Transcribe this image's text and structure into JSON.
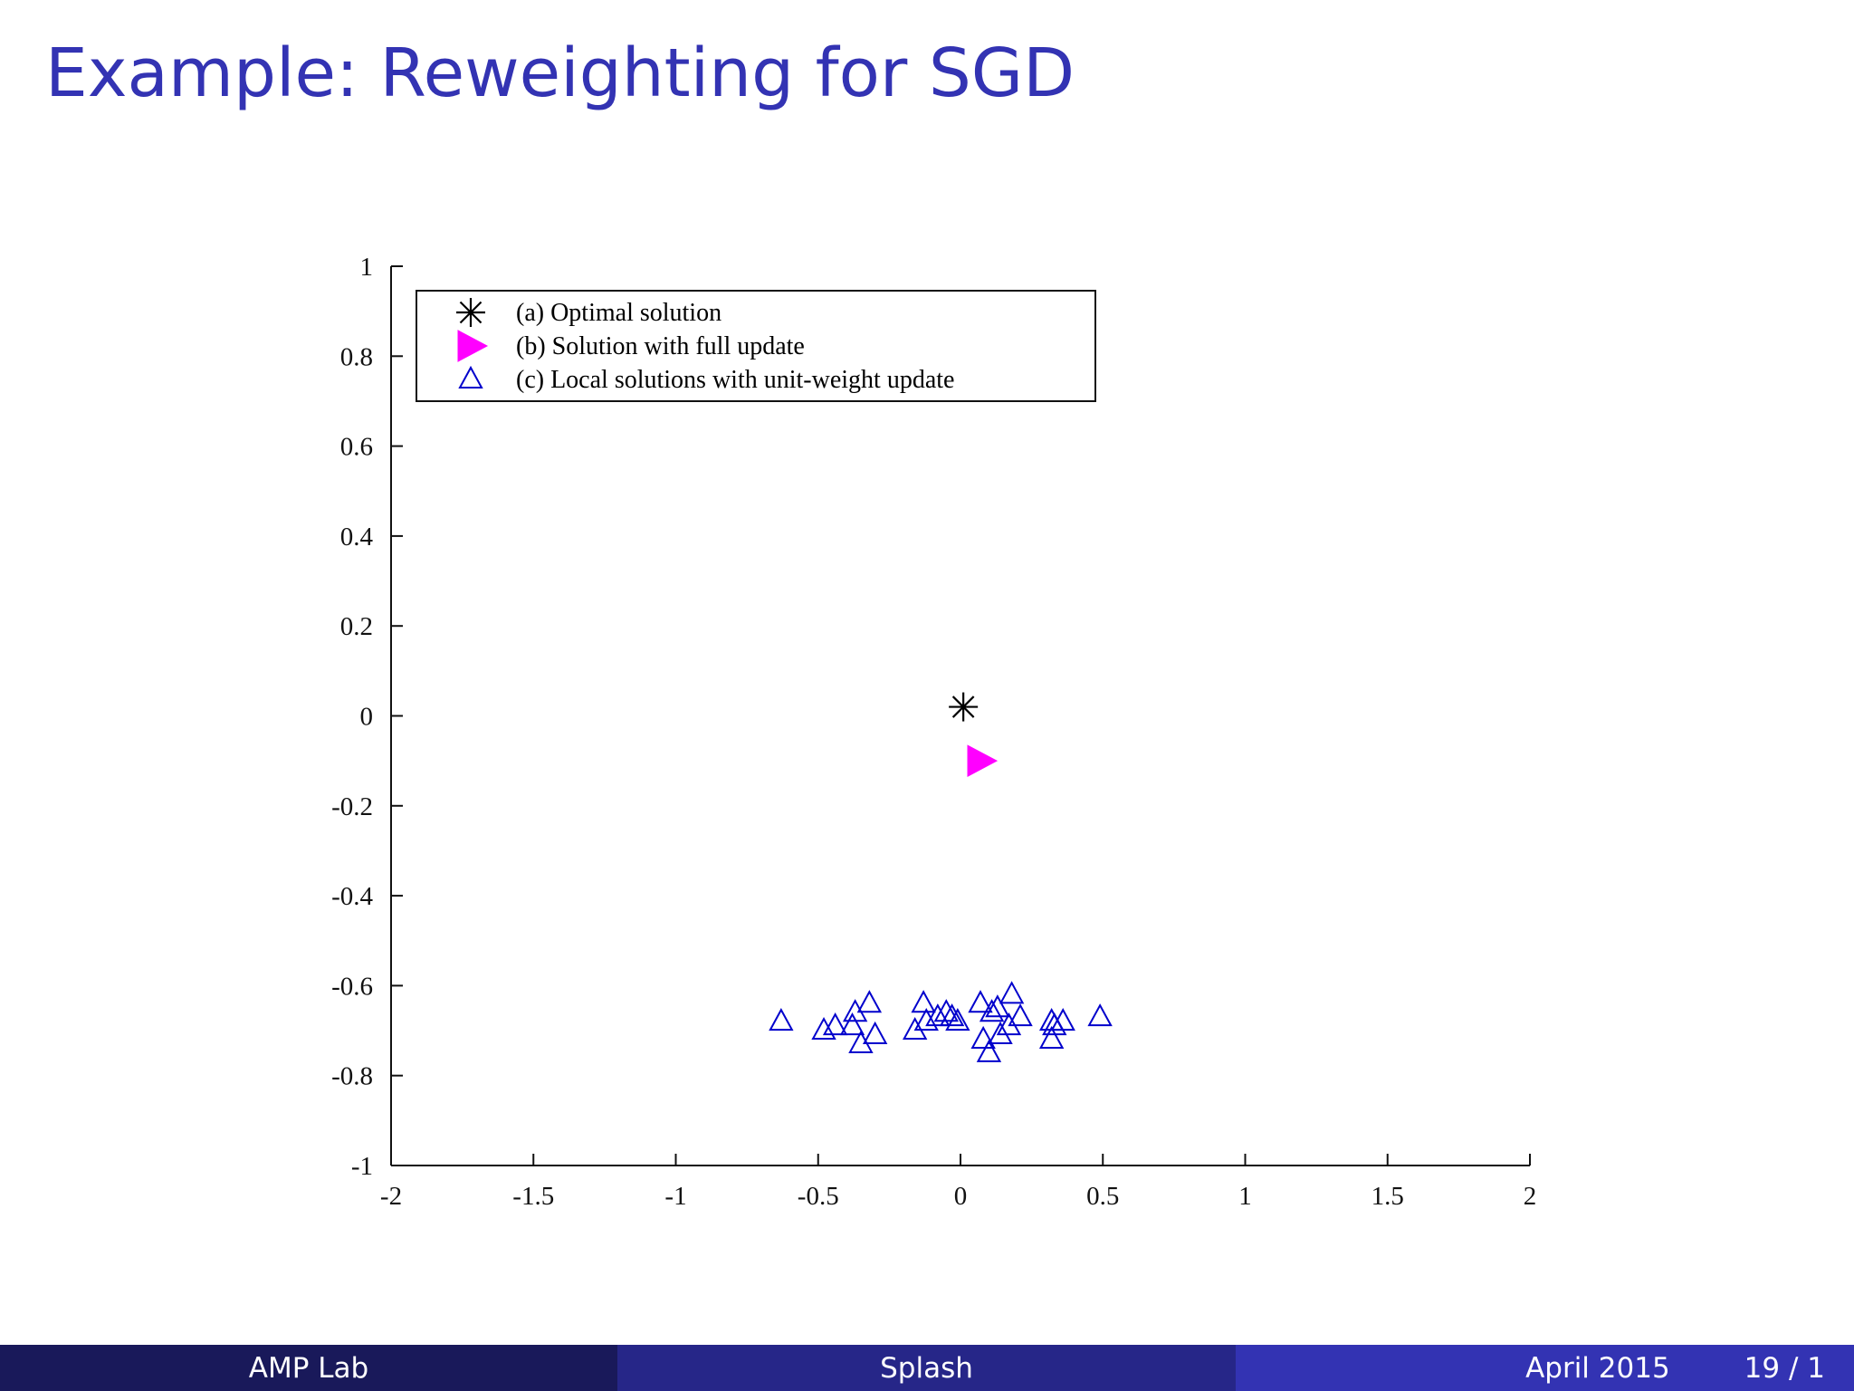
{
  "slide": {
    "title": "Example: Reweighting for SGD"
  },
  "footer": {
    "author": "AMP Lab",
    "short_title": "Splash",
    "date": "April 2015",
    "page": "19 / 1"
  },
  "colors": {
    "title": "#3333b3",
    "optimal": "#000000",
    "full_update": "#ff00ff",
    "local": "#0000cc"
  },
  "chart_data": {
    "type": "scatter",
    "title": "",
    "xlabel": "",
    "ylabel": "",
    "xlim": [
      -2,
      2
    ],
    "ylim": [
      -1,
      1
    ],
    "xticks": [
      -2,
      -1.5,
      -1,
      -0.5,
      0,
      0.5,
      1,
      1.5,
      2
    ],
    "yticks": [
      1,
      0.8,
      0.6,
      0.4,
      0.2,
      0,
      -0.2,
      -0.4,
      -0.6,
      -0.8,
      -1
    ],
    "xtick_labels": [
      "-2",
      "-1.5",
      "-1",
      "-0.5",
      "0",
      "0.5",
      "1",
      "1.5",
      "2"
    ],
    "ytick_labels": [
      "1",
      "0.8",
      "0.6",
      "0.4",
      "0.2",
      "0",
      "-0.2",
      "-0.4",
      "-0.6",
      "-0.8",
      "-1"
    ],
    "grid": false,
    "legend_position": "top-left",
    "series": [
      {
        "name": "(a) Optimal solution",
        "marker": "asterisk",
        "color": "#000000",
        "points": [
          [
            0.01,
            0.02
          ]
        ]
      },
      {
        "name": "(b) Solution with full update",
        "marker": "triangle-right-filled",
        "color": "#ff00ff",
        "points": [
          [
            0.07,
            -0.1
          ]
        ]
      },
      {
        "name": "(c) Local solutions with unit-weight update",
        "marker": "triangle-up-open",
        "color": "#0000cc",
        "points": [
          [
            -0.63,
            -0.68
          ],
          [
            -0.48,
            -0.7
          ],
          [
            -0.44,
            -0.69
          ],
          [
            -0.37,
            -0.66
          ],
          [
            -0.38,
            -0.69
          ],
          [
            -0.32,
            -0.64
          ],
          [
            -0.35,
            -0.73
          ],
          [
            -0.3,
            -0.71
          ],
          [
            -0.16,
            -0.7
          ],
          [
            -0.13,
            -0.64
          ],
          [
            -0.12,
            -0.68
          ],
          [
            -0.08,
            -0.67
          ],
          [
            -0.05,
            -0.66
          ],
          [
            -0.03,
            -0.67
          ],
          [
            -0.01,
            -0.68
          ],
          [
            0.07,
            -0.64
          ],
          [
            0.08,
            -0.72
          ],
          [
            0.1,
            -0.75
          ],
          [
            0.11,
            -0.66
          ],
          [
            0.13,
            -0.65
          ],
          [
            0.14,
            -0.71
          ],
          [
            0.17,
            -0.69
          ],
          [
            0.18,
            -0.62
          ],
          [
            0.21,
            -0.67
          ],
          [
            0.32,
            -0.68
          ],
          [
            0.33,
            -0.69
          ],
          [
            0.32,
            -0.72
          ],
          [
            0.36,
            -0.68
          ],
          [
            0.49,
            -0.67
          ]
        ]
      }
    ]
  }
}
